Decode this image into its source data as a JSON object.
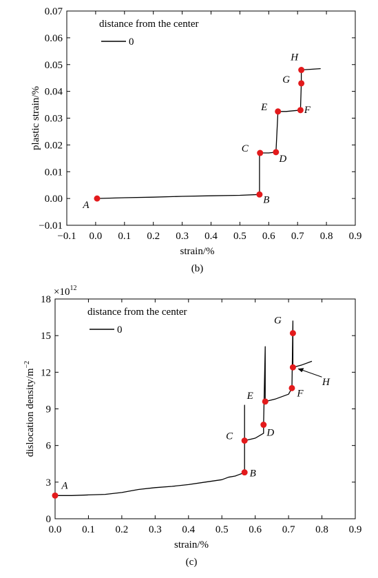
{
  "chart_data": [
    {
      "type": "line",
      "caption": "(b)",
      "xlabel": "strain/%",
      "ylabel": "plastic strain/%",
      "xlim": [
        -0.1,
        0.9
      ],
      "ylim": [
        -0.01,
        0.07
      ],
      "xticks": [
        -0.1,
        0.0,
        0.1,
        0.2,
        0.3,
        0.4,
        0.5,
        0.6,
        0.7,
        0.8,
        0.9
      ],
      "xtick_labels": [
        "−0.1",
        "0.0",
        "0.1",
        "0.2",
        "0.3",
        "0.4",
        "0.5",
        "0.6",
        "0.7",
        "0.8",
        "0.9"
      ],
      "yticks": [
        -0.01,
        0.0,
        0.01,
        0.02,
        0.03,
        0.04,
        0.05,
        0.06,
        0.07
      ],
      "ytick_labels": [
        "−0.01",
        "0.00",
        "0.01",
        "0.02",
        "0.03",
        "0.04",
        "0.05",
        "0.06",
        "0.07"
      ],
      "legend": {
        "title": "distance from the center",
        "entries": [
          "0"
        ],
        "position": "top-left"
      },
      "series": [
        {
          "name": "0",
          "color": "#000000",
          "points": [
            [
              0.005,
              0.0
            ],
            [
              0.1,
              0.0003
            ],
            [
              0.2,
              0.0005
            ],
            [
              0.3,
              0.0008
            ],
            [
              0.4,
              0.001
            ],
            [
              0.5,
              0.0012
            ],
            [
              0.568,
              0.0015
            ],
            [
              0.568,
              0.017
            ],
            [
              0.6,
              0.017
            ],
            [
              0.625,
              0.0173
            ],
            [
              0.632,
              0.0325
            ],
            [
              0.66,
              0.0325
            ],
            [
              0.71,
              0.033
            ],
            [
              0.713,
              0.043
            ],
            [
              0.713,
              0.048
            ],
            [
              0.78,
              0.0485
            ]
          ]
        }
      ],
      "markers": [
        {
          "label": "A",
          "x": 0.005,
          "y": 0.0
        },
        {
          "label": "B",
          "x": 0.568,
          "y": 0.0015
        },
        {
          "label": "C",
          "x": 0.57,
          "y": 0.017
        },
        {
          "label": "D",
          "x": 0.625,
          "y": 0.0173
        },
        {
          "label": "E",
          "x": 0.632,
          "y": 0.0325
        },
        {
          "label": "F",
          "x": 0.71,
          "y": 0.033
        },
        {
          "label": "G",
          "x": 0.713,
          "y": 0.043
        },
        {
          "label": "H",
          "x": 0.713,
          "y": 0.048
        }
      ],
      "marker_color": "#e31a1c"
    },
    {
      "type": "line",
      "caption": "(c)",
      "xlabel": "strain/%",
      "ylabel": "dislocation density/m",
      "ylabel_exponent": "−2",
      "y_scale_factor": "×10",
      "y_scale_exponent": "12",
      "xlim": [
        0.0,
        0.9
      ],
      "ylim": [
        0,
        18
      ],
      "xticks": [
        0.0,
        0.1,
        0.2,
        0.3,
        0.4,
        0.5,
        0.6,
        0.7,
        0.8,
        0.9
      ],
      "xtick_labels": [
        "0.0",
        "0.1",
        "0.2",
        "0.3",
        "0.4",
        "0.5",
        "0.6",
        "0.7",
        "0.8",
        "0.9"
      ],
      "yticks": [
        0,
        3,
        6,
        9,
        12,
        15,
        18
      ],
      "ytick_labels": [
        "0",
        "3",
        "6",
        "9",
        "12",
        "15",
        "18"
      ],
      "legend": {
        "title": "distance from the center",
        "entries": [
          "0"
        ],
        "position": "top-left"
      },
      "series": [
        {
          "name": "0",
          "color": "#000000",
          "points": [
            [
              0.0,
              1.9
            ],
            [
              0.05,
              1.9
            ],
            [
              0.1,
              1.95
            ],
            [
              0.15,
              2.0
            ],
            [
              0.2,
              2.15
            ],
            [
              0.25,
              2.4
            ],
            [
              0.3,
              2.55
            ],
            [
              0.35,
              2.65
            ],
            [
              0.4,
              2.8
            ],
            [
              0.45,
              3.0
            ],
            [
              0.5,
              3.2
            ],
            [
              0.52,
              3.4
            ],
            [
              0.54,
              3.5
            ],
            [
              0.55,
              3.6
            ],
            [
              0.56,
              3.7
            ],
            [
              0.568,
              3.8
            ],
            [
              0.568,
              9.3
            ],
            [
              0.568,
              6.4
            ],
            [
              0.6,
              6.6
            ],
            [
              0.625,
              7.0
            ],
            [
              0.625,
              7.7
            ],
            [
              0.63,
              14.1
            ],
            [
              0.63,
              9.6
            ],
            [
              0.66,
              9.8
            ],
            [
              0.7,
              10.2
            ],
            [
              0.71,
              10.7
            ],
            [
              0.713,
              16.2
            ],
            [
              0.713,
              12.4
            ],
            [
              0.74,
              12.6
            ],
            [
              0.77,
              12.9
            ]
          ]
        }
      ],
      "markers": [
        {
          "label": "A",
          "x": 0.0,
          "y": 1.9
        },
        {
          "label": "B",
          "x": 0.568,
          "y": 3.8
        },
        {
          "label": "C",
          "x": 0.568,
          "y": 6.4
        },
        {
          "label": "D",
          "x": 0.625,
          "y": 7.7
        },
        {
          "label": "E",
          "x": 0.63,
          "y": 9.6
        },
        {
          "label": "F",
          "x": 0.71,
          "y": 10.7
        },
        {
          "label": "G",
          "x": 0.713,
          "y": 15.2
        },
        {
          "label": "H",
          "x": 0.713,
          "y": 12.4
        }
      ],
      "marker_color": "#e31a1c"
    }
  ]
}
